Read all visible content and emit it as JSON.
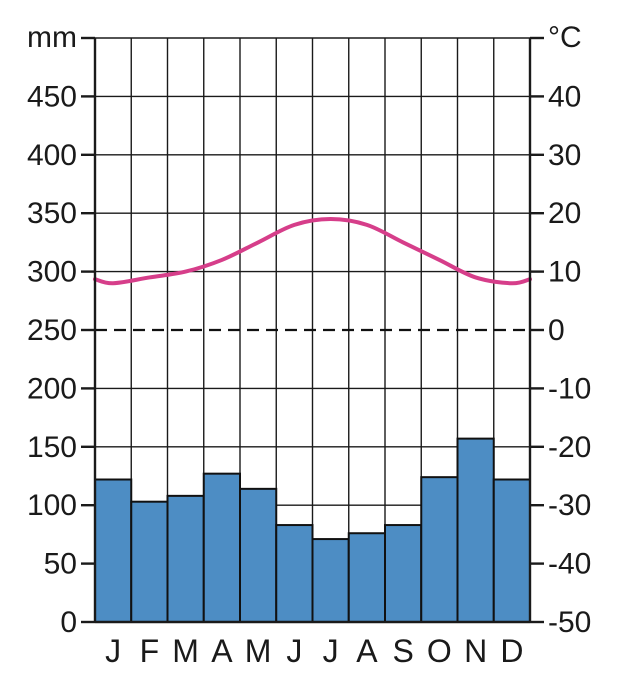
{
  "chart_data": {
    "type": "bar",
    "categories": [
      "J",
      "F",
      "M",
      "A",
      "M",
      "J",
      "J",
      "A",
      "S",
      "O",
      "N",
      "D"
    ],
    "series": [
      {
        "type": "bar",
        "axis": "left",
        "color": "#4d8dc4",
        "values": [
          122,
          103,
          108,
          127,
          114,
          83,
          71,
          76,
          83,
          124,
          157,
          122
        ]
      },
      {
        "type": "line",
        "axis": "right",
        "color": "#d63e8a",
        "values": [
          8,
          9,
          10,
          12,
          15,
          18,
          19,
          18,
          15,
          12,
          9,
          8
        ]
      }
    ],
    "left_axis": {
      "label": "mm",
      "ylim": [
        0,
        500
      ],
      "ticks": [
        "0",
        "50",
        "100",
        "150",
        "200",
        "250",
        "300",
        "350",
        "400",
        "450"
      ]
    },
    "right_axis": {
      "label": "°C",
      "ylim": [
        -50,
        50
      ],
      "ticks": [
        "-50",
        "-40",
        "-30",
        "-20",
        "-10",
        "0",
        "10",
        "20",
        "30",
        "40"
      ]
    },
    "zero_temperature_line": {
      "value": 0,
      "style": "dashed",
      "color": "#111111"
    },
    "grid": true,
    "legend": "none"
  }
}
